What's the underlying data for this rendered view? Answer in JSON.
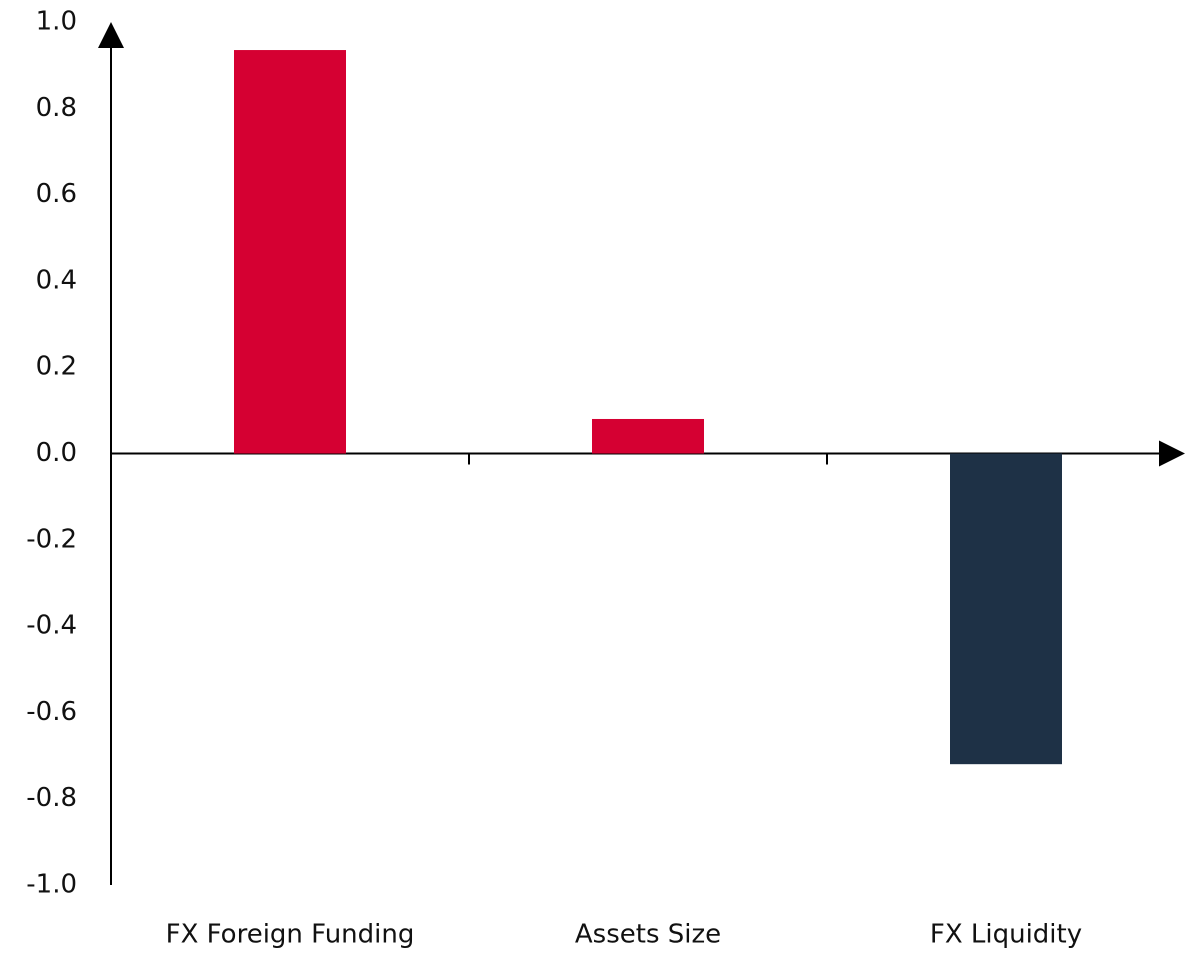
{
  "chart_data": {
    "type": "bar",
    "categories": [
      "FX Foreign Funding",
      "Assets Size",
      "FX Liquidity"
    ],
    "values": [
      0.935,
      0.08,
      -0.72
    ],
    "colors": [
      "#d50032",
      "#d50032",
      "#1e3146"
    ],
    "ylim": [
      -1.0,
      1.0
    ],
    "yticks": [
      {
        "value": 1.0,
        "label": "1.0"
      },
      0.8,
      0.6,
      0.4,
      0.2,
      {
        "value": 0.0,
        "label": "0.0"
      },
      -0.2,
      -0.4,
      -0.6,
      -0.8,
      {
        "value": -1.0,
        "label": "-1.0"
      }
    ],
    "grid": false
  }
}
